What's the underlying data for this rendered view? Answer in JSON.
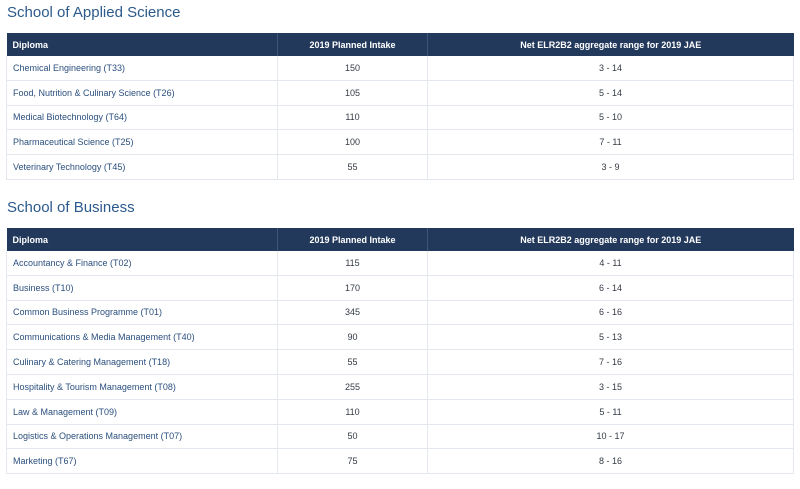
{
  "sections": [
    {
      "title": "School of Applied Science",
      "headers": [
        "Diploma",
        "2019 Planned Intake",
        "Net ELR2B2 aggregate range for 2019 JAE"
      ],
      "rows": [
        {
          "diploma": "Chemical Engineering (T33)",
          "intake": "150",
          "range": "3 - 14"
        },
        {
          "diploma": "Food, Nutrition & Culinary Science (T26)",
          "intake": "105",
          "range": "5 - 14"
        },
        {
          "diploma": "Medical Biotechnology (T64)",
          "intake": "110",
          "range": "5 - 10"
        },
        {
          "diploma": "Pharmaceutical Science (T25)",
          "intake": "100",
          "range": "7 - 11"
        },
        {
          "diploma": "Veterinary Technology (T45)",
          "intake": "55",
          "range": "3 - 9"
        }
      ]
    },
    {
      "title": "School of Business",
      "headers": [
        "Diploma",
        "2019 Planned Intake",
        "Net ELR2B2 aggregate range for 2019 JAE"
      ],
      "rows": [
        {
          "diploma": "Accountancy & Finance (T02)",
          "intake": "115",
          "range": "4 - 11"
        },
        {
          "diploma": "Business (T10)",
          "intake": "170",
          "range": "6 - 14"
        },
        {
          "diploma": "Common Business Programme (T01)",
          "intake": "345",
          "range": "6 - 16"
        },
        {
          "diploma": "Communications & Media Management (T40)",
          "intake": "90",
          "range": "5 - 13"
        },
        {
          "diploma": "Culinary & Catering Management (T18)",
          "intake": "55",
          "range": "7 - 16"
        },
        {
          "diploma": "Hospitality & Tourism Management (T08)",
          "intake": "255",
          "range": "3 - 15"
        },
        {
          "diploma": "Law & Management (T09)",
          "intake": "110",
          "range": "5 - 11"
        },
        {
          "diploma": "Logistics & Operations Management (T07)",
          "intake": "50",
          "range": "10 - 17"
        },
        {
          "diploma": "Marketing (T67)",
          "intake": "75",
          "range": "8 - 16"
        }
      ]
    }
  ],
  "colors": {
    "header_bg": "#23395c",
    "title_text": "#2c5a8c",
    "diploma_text": "#2b4f7e"
  }
}
